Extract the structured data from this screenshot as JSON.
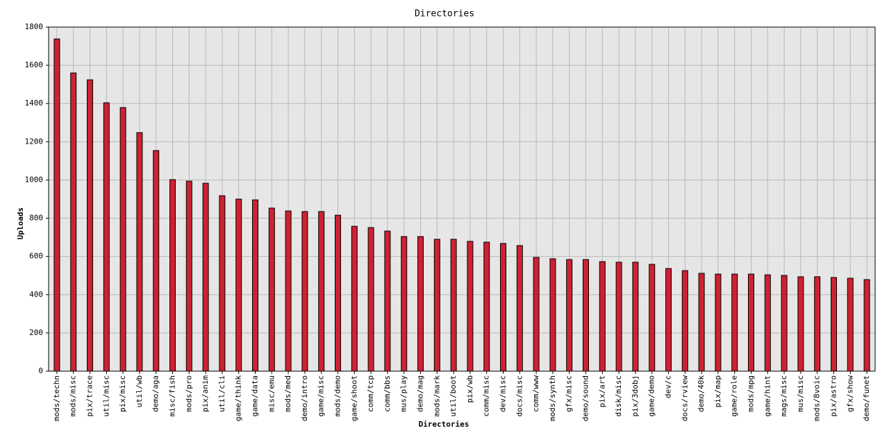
{
  "chart_data": {
    "type": "bar",
    "title": "Directories",
    "x_label": "Directories",
    "y_label": "Uploads",
    "categories": [
      "mods/techn",
      "mods/misc",
      "pix/trace",
      "util/misc",
      "pix/misc",
      "util/wb",
      "demo/aga",
      "misc/fish",
      "mods/pro",
      "pix/anim",
      "util/cli",
      "game/think",
      "game/data",
      "misc/emu",
      "mods/med",
      "demo/intro",
      "game/misc",
      "mods/demo",
      "game/shoot",
      "comm/tcp",
      "comm/bbs",
      "mus/play",
      "demo/mag",
      "mods/mark",
      "util/boot",
      "pix/wb",
      "comm/misc",
      "dev/misc",
      "docs/misc",
      "comm/www",
      "mods/synth",
      "gfx/misc",
      "demo/sound",
      "pix/art",
      "disk/misc",
      "pix/3dobj",
      "game/demo",
      "dev/c",
      "docs/rview",
      "demo/40k",
      "pix/map",
      "game/role",
      "mods/mpg",
      "game/hint",
      "mags/misc",
      "mus/misc",
      "mods/8voic",
      "pix/astro",
      "gfx/show",
      "demo/funet"
    ],
    "values": [
      1738,
      1560,
      1524,
      1404,
      1379,
      1248,
      1154,
      1002,
      994,
      983,
      918,
      900,
      896,
      853,
      838,
      835,
      835,
      816,
      758,
      751,
      733,
      704,
      704,
      690,
      690,
      679,
      675,
      668,
      657,
      595,
      588,
      584,
      584,
      573,
      570,
      570,
      559,
      537,
      526,
      512,
      508,
      508,
      508,
      504,
      501,
      494,
      494,
      490,
      486,
      479
    ],
    "color": "#cc2233",
    "ylim": [
      0,
      1800
    ],
    "yticks": [
      0,
      200,
      400,
      600,
      800,
      1000,
      1200,
      1400,
      1600,
      1800
    ],
    "grid": true
  }
}
